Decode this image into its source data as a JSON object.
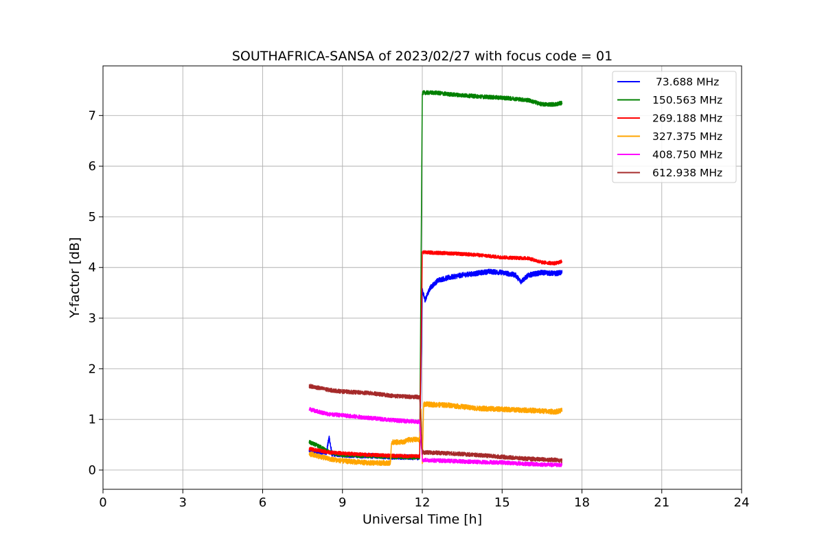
{
  "chart_data": {
    "type": "line",
    "title": "SOUTHAFRICA-SANSA of 2023/02/27 with focus code = 01",
    "xlabel": "Universal Time [h]",
    "ylabel": "Y-factor [dB]",
    "xlim": [
      0,
      24
    ],
    "ylim": [
      -0.38,
      7.98
    ],
    "xticks": [
      0,
      3,
      6,
      9,
      12,
      15,
      18,
      21,
      24
    ],
    "xtick_labels": [
      "0",
      "3",
      "6",
      "9",
      "12",
      "15",
      "18",
      "21",
      "24"
    ],
    "yticks": [
      0,
      1,
      2,
      3,
      4,
      5,
      6,
      7
    ],
    "ytick_labels": [
      "0",
      "1",
      "2",
      "3",
      "4",
      "5",
      "6",
      "7"
    ],
    "grid": true,
    "legend_position": "top-right",
    "series": [
      {
        "name": " 73.688 MHz",
        "color": "#0000ff",
        "noise": 0.05,
        "points": [
          [
            7.75,
            0.38
          ],
          [
            8.4,
            0.35
          ],
          [
            8.5,
            0.65
          ],
          [
            8.6,
            0.32
          ],
          [
            9.0,
            0.3
          ],
          [
            10.0,
            0.28
          ],
          [
            11.0,
            0.26
          ],
          [
            11.9,
            0.25
          ],
          [
            12.0,
            3.55
          ],
          [
            12.1,
            3.35
          ],
          [
            12.3,
            3.6
          ],
          [
            12.6,
            3.75
          ],
          [
            13.0,
            3.8
          ],
          [
            13.5,
            3.85
          ],
          [
            14.0,
            3.88
          ],
          [
            14.5,
            3.92
          ],
          [
            15.0,
            3.9
          ],
          [
            15.5,
            3.85
          ],
          [
            15.7,
            3.72
          ],
          [
            16.0,
            3.85
          ],
          [
            16.5,
            3.9
          ],
          [
            17.0,
            3.88
          ],
          [
            17.25,
            3.9
          ]
        ]
      },
      {
        "name": "150.563 MHz",
        "color": "#008000",
        "noise": 0.04,
        "points": [
          [
            7.75,
            0.55
          ],
          [
            8.2,
            0.45
          ],
          [
            8.5,
            0.35
          ],
          [
            9.0,
            0.3
          ],
          [
            10.0,
            0.28
          ],
          [
            11.0,
            0.26
          ],
          [
            11.9,
            0.25
          ],
          [
            12.0,
            7.45
          ],
          [
            12.5,
            7.45
          ],
          [
            13.0,
            7.42
          ],
          [
            14.0,
            7.38
          ],
          [
            15.0,
            7.35
          ],
          [
            15.5,
            7.33
          ],
          [
            16.0,
            7.3
          ],
          [
            16.5,
            7.22
          ],
          [
            17.0,
            7.22
          ],
          [
            17.25,
            7.25
          ]
        ]
      },
      {
        "name": "269.188 MHz",
        "color": "#ff0000",
        "noise": 0.035,
        "points": [
          [
            7.75,
            0.42
          ],
          [
            8.5,
            0.35
          ],
          [
            9.0,
            0.33
          ],
          [
            10.0,
            0.3
          ],
          [
            11.0,
            0.28
          ],
          [
            11.9,
            0.27
          ],
          [
            12.0,
            4.3
          ],
          [
            13.0,
            4.28
          ],
          [
            14.0,
            4.25
          ],
          [
            15.0,
            4.2
          ],
          [
            16.0,
            4.18
          ],
          [
            16.5,
            4.1
          ],
          [
            17.0,
            4.08
          ],
          [
            17.25,
            4.12
          ]
        ]
      },
      {
        "name": "327.375 MHz",
        "color": "#ffa500",
        "noise": 0.05,
        "points": [
          [
            7.75,
            0.32
          ],
          [
            8.5,
            0.22
          ],
          [
            9.0,
            0.18
          ],
          [
            10.0,
            0.14
          ],
          [
            10.8,
            0.14
          ],
          [
            10.85,
            0.55
          ],
          [
            11.3,
            0.55
          ],
          [
            11.5,
            0.6
          ],
          [
            11.9,
            0.6
          ],
          [
            11.95,
            1.2
          ],
          [
            12.0,
            0.1
          ],
          [
            12.05,
            1.3
          ],
          [
            13.0,
            1.28
          ],
          [
            14.0,
            1.22
          ],
          [
            15.0,
            1.2
          ],
          [
            16.0,
            1.18
          ],
          [
            17.0,
            1.15
          ],
          [
            17.25,
            1.18
          ]
        ]
      },
      {
        "name": "408.750 MHz",
        "color": "#ff00ff",
        "noise": 0.04,
        "points": [
          [
            7.75,
            1.2
          ],
          [
            8.5,
            1.1
          ],
          [
            9.0,
            1.08
          ],
          [
            10.0,
            1.03
          ],
          [
            11.0,
            0.98
          ],
          [
            11.9,
            0.95
          ],
          [
            12.0,
            0.2
          ],
          [
            13.0,
            0.18
          ],
          [
            14.0,
            0.16
          ],
          [
            15.0,
            0.15
          ],
          [
            16.0,
            0.12
          ],
          [
            17.0,
            0.1
          ],
          [
            17.25,
            0.1
          ]
        ]
      },
      {
        "name": "612.938 MHz",
        "color": "#a52a2a",
        "noise": 0.04,
        "points": [
          [
            7.75,
            1.66
          ],
          [
            8.5,
            1.58
          ],
          [
            9.0,
            1.55
          ],
          [
            10.0,
            1.52
          ],
          [
            11.0,
            1.46
          ],
          [
            11.9,
            1.44
          ],
          [
            12.0,
            0.35
          ],
          [
            13.0,
            0.33
          ],
          [
            14.0,
            0.3
          ],
          [
            15.0,
            0.26
          ],
          [
            16.0,
            0.22
          ],
          [
            17.0,
            0.2
          ],
          [
            17.25,
            0.18
          ]
        ]
      }
    ]
  }
}
